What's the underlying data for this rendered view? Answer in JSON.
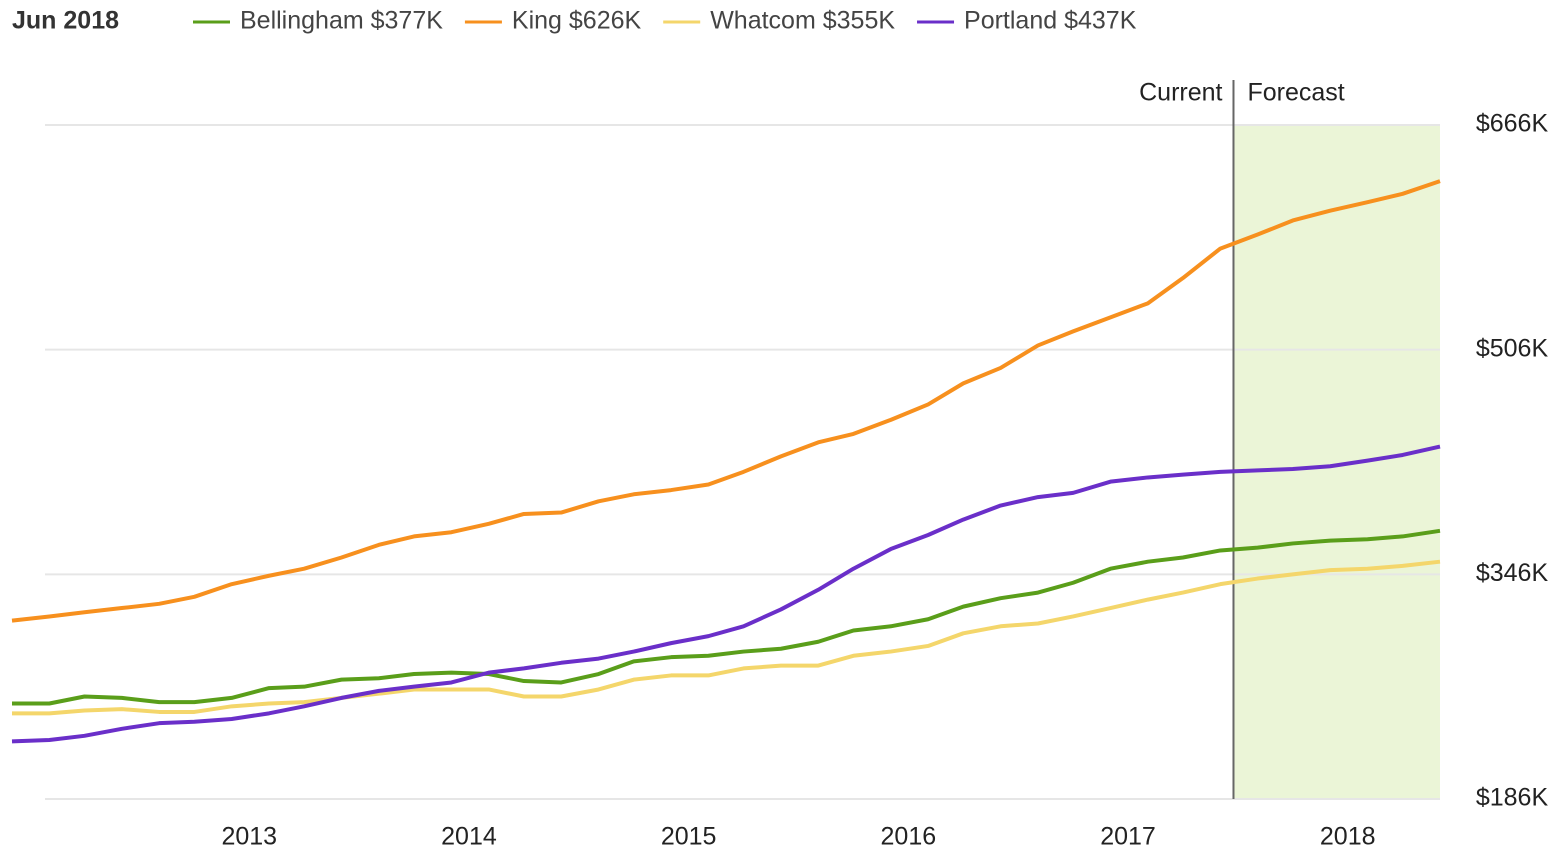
{
  "chart_data": {
    "type": "line",
    "date_label": "Jun 2018",
    "x": [
      2011.92,
      2012.09,
      2012.25,
      2012.42,
      2012.59,
      2012.75,
      2012.92,
      2013.09,
      2013.25,
      2013.42,
      2013.59,
      2013.75,
      2013.92,
      2014.09,
      2014.25,
      2014.42,
      2014.59,
      2014.75,
      2014.92,
      2015.09,
      2015.25,
      2015.42,
      2015.59,
      2015.75,
      2015.92,
      2016.09,
      2016.25,
      2016.42,
      2016.59,
      2016.75,
      2016.92,
      2017.09,
      2017.25,
      2017.42,
      2017.59,
      2017.75,
      2017.92,
      2018.09,
      2018.25,
      2018.42
    ],
    "series": [
      {
        "name": "Bellingham $377K",
        "color": "#5a9e1a",
        "values": [
          254,
          254,
          259,
          258,
          255,
          255,
          258,
          265,
          266,
          271,
          272,
          275,
          276,
          275,
          270,
          269,
          275,
          284,
          287,
          288,
          291,
          293,
          298,
          306,
          309,
          314,
          323,
          329,
          333,
          340,
          350,
          355,
          358,
          363,
          365,
          368,
          370,
          371,
          373,
          377
        ]
      },
      {
        "name": "King $626K",
        "color": "#f7901e",
        "values": [
          313,
          316,
          319,
          322,
          325,
          330,
          339,
          345,
          350,
          358,
          367,
          373,
          376,
          382,
          389,
          390,
          398,
          403,
          406,
          410,
          419,
          430,
          440,
          446,
          456,
          467,
          482,
          493,
          509,
          519,
          529,
          539,
          557,
          578,
          588,
          598,
          605,
          611,
          617,
          626
        ]
      },
      {
        "name": "Whatcom $355K",
        "color": "#f4d66b",
        "values": [
          247,
          247,
          249,
          250,
          248,
          248,
          252,
          254,
          255,
          258,
          261,
          264,
          264,
          264,
          259,
          259,
          264,
          271,
          274,
          274,
          279,
          281,
          281,
          288,
          291,
          295,
          304,
          309,
          311,
          316,
          322,
          328,
          333,
          339,
          343,
          346,
          349,
          350,
          352,
          355
        ]
      },
      {
        "name": "Portland $437K",
        "color": "#6a2fc9",
        "values": [
          227,
          228,
          231,
          236,
          240,
          241,
          243,
          247,
          252,
          258,
          263,
          266,
          269,
          276,
          279,
          283,
          286,
          291,
          297,
          302,
          309,
          321,
          335,
          350,
          364,
          374,
          385,
          395,
          401,
          404,
          412,
          415,
          417,
          419,
          420,
          421,
          423,
          427,
          431,
          437
        ]
      }
    ],
    "xlim": [
      2011.92,
      2018.42
    ],
    "xticks": [
      2013,
      2014,
      2015,
      2016,
      2017,
      2018
    ],
    "ylim": [
      186,
      666
    ],
    "yticks": [
      {
        "value": 186,
        "label": "$186K"
      },
      {
        "value": 346,
        "label": "$346K"
      },
      {
        "value": 506,
        "label": "$506K"
      },
      {
        "value": 666,
        "label": "$666K"
      }
    ],
    "grid": true,
    "forecast_start": 2017.48,
    "current_label": "Current",
    "forecast_label": "Forecast",
    "forecast_color": "#ebf5d7"
  }
}
